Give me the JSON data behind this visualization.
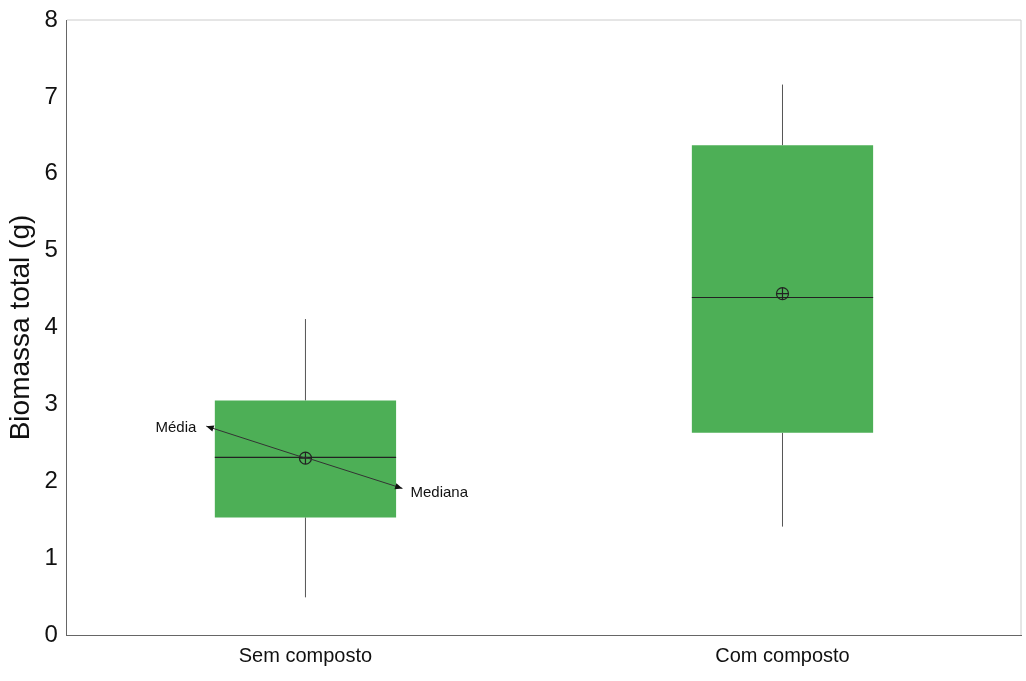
{
  "chart_data": {
    "type": "box",
    "ylabel": "Biomassa total (g)",
    "categories": [
      "Sem composto",
      "Com composto"
    ],
    "color": "#4daf56",
    "boxes": [
      {
        "low": 0.49,
        "q1": 1.53,
        "median": 2.31,
        "q3": 3.05,
        "high": 4.11,
        "mean": 2.3
      },
      {
        "low": 1.41,
        "q1": 2.63,
        "median": 4.39,
        "q3": 6.37,
        "high": 7.16,
        "mean": 4.44
      }
    ],
    "ylim": [
      0,
      8
    ],
    "yticks": [
      0,
      1,
      2,
      3,
      4,
      5,
      6,
      7,
      8
    ],
    "grid": false,
    "legend": false,
    "annotations": [
      {
        "text": "Média",
        "x": "Sem composto",
        "y": 2.3
      },
      {
        "text": "Mediana",
        "x": "Sem composto",
        "y": 2.31
      }
    ]
  }
}
